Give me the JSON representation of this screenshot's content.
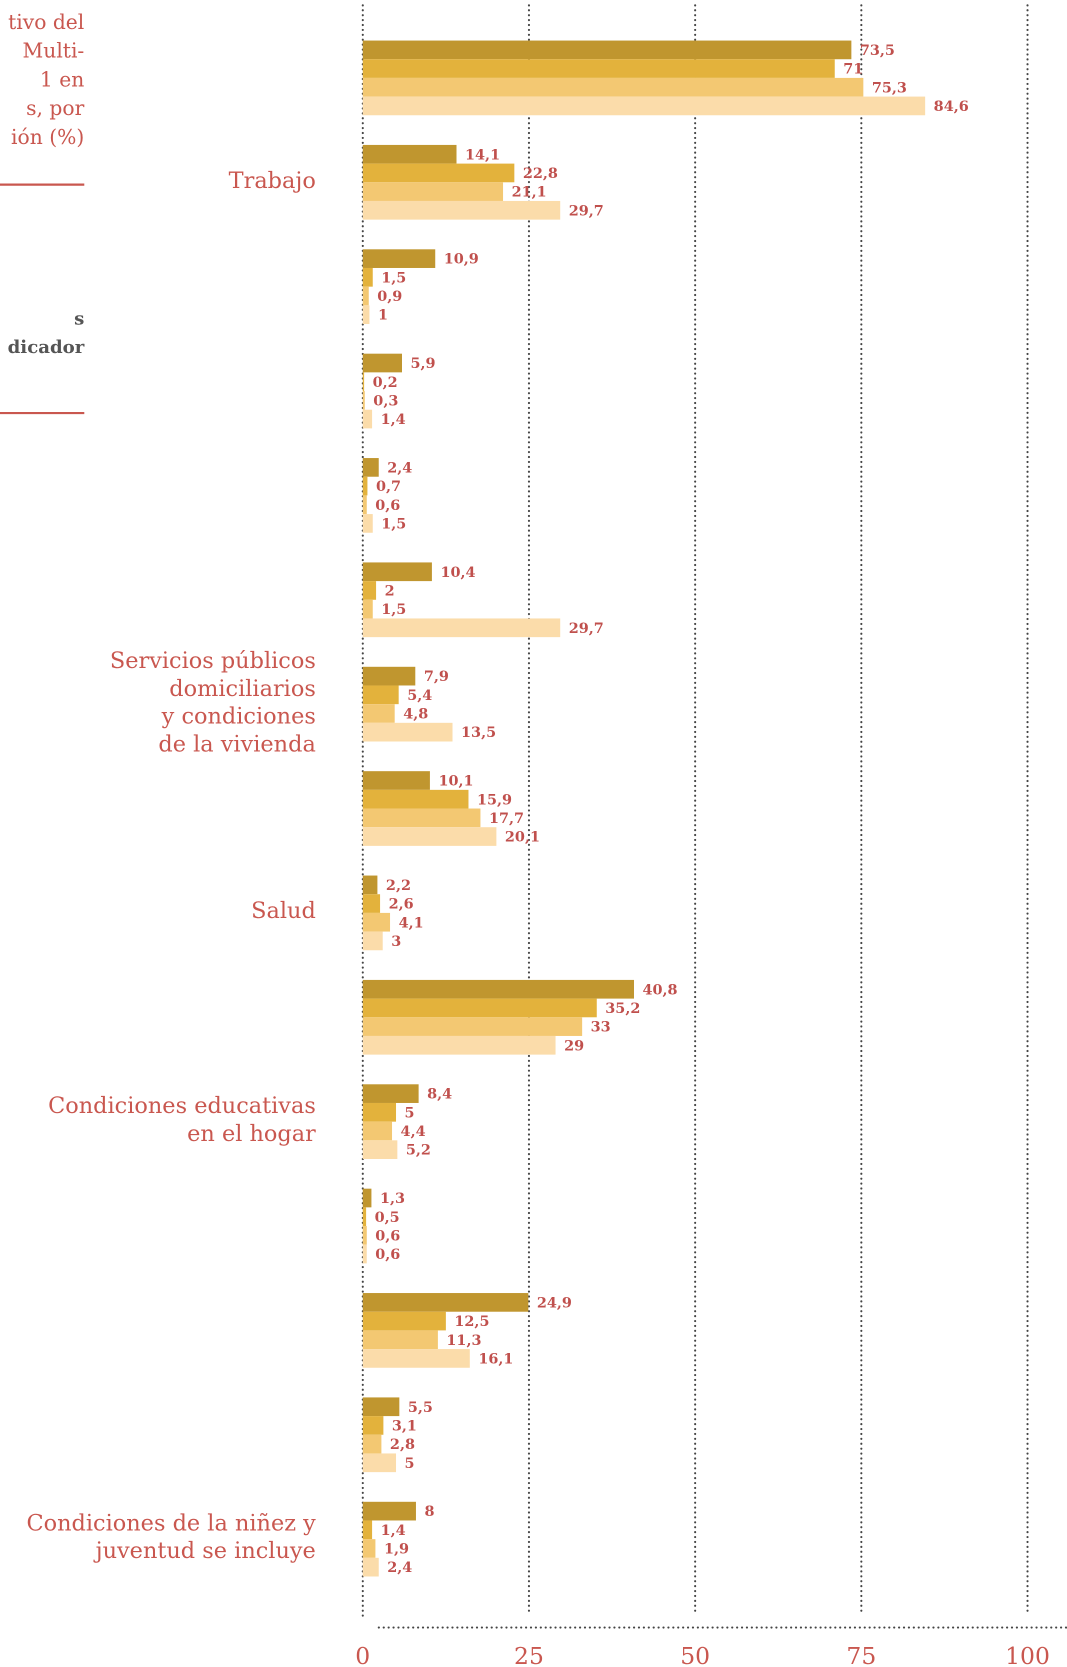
{
  "header": {
    "title_lines": [
      "tivo del",
      "Multi-",
      "1 en",
      "s, por",
      "ión (%)"
    ],
    "subtitle_lines": [
      "s",
      "dicador"
    ]
  },
  "chart_data": {
    "type": "hbar",
    "categories": [
      null,
      "Trabajo",
      null,
      null,
      null,
      null,
      "Servicios públicos\ndomiciliarios\ny condiciones\nde la vivienda",
      null,
      "Salud",
      null,
      "Condiciones educativas\nen el hogar",
      null,
      null,
      null,
      "Condiciones de la niñez y\njuventud se incluye"
    ],
    "series": [
      {
        "color": "#c0962f",
        "values": [
          73.5,
          14.1,
          10.9,
          5.9,
          2.4,
          10.4,
          7.9,
          10.1,
          2.2,
          40.8,
          8.4,
          1.3,
          24.9,
          5.5,
          8
        ],
        "value_labels": [
          "73,5",
          "14,1",
          "10,9",
          "5,9",
          "2,4",
          "10,4",
          "7,9",
          "10,1",
          "2,2",
          "40,8",
          "8,4",
          "1,3",
          "24,9",
          "5,5",
          "8"
        ]
      },
      {
        "color": "#e3b23c",
        "values": [
          71,
          22.8,
          1.5,
          0.2,
          0.7,
          2,
          5.4,
          15.9,
          2.6,
          35.2,
          5,
          0.5,
          12.5,
          3.1,
          1.4
        ],
        "value_labels": [
          "71",
          "22,8",
          "1,5",
          "0,2",
          "0,7",
          "2",
          "5,4",
          "15,9",
          "2,6",
          "35,2",
          "5",
          "0,5",
          "12,5",
          "3,1",
          "1,4"
        ]
      },
      {
        "color": "#f3c872",
        "values": [
          75.3,
          21.1,
          0.9,
          0.3,
          0.6,
          1.5,
          4.8,
          17.7,
          4.1,
          33,
          4.4,
          0.6,
          11.3,
          2.8,
          1.9
        ],
        "value_labels": [
          "75,3",
          "21,1",
          "0,9",
          "0,3",
          "0,6",
          "1,5",
          "4,8",
          "17,7",
          "4,1",
          "33",
          "4,4",
          "0,6",
          "11,3",
          "2,8",
          "1,9"
        ]
      },
      {
        "color": "#fbdcaa",
        "values": [
          84.6,
          29.7,
          1,
          1.4,
          1.5,
          29.7,
          13.5,
          20.1,
          3,
          29,
          5.2,
          0.6,
          16.1,
          5,
          2.4
        ],
        "value_labels": [
          "84,6",
          "29,7",
          "1",
          "1,4",
          "1,5",
          "29,7",
          "13,5",
          "20,1",
          "3",
          "29",
          "5,2",
          "0,6",
          "16,1",
          "5",
          "2,4"
        ]
      }
    ],
    "xlim": [
      0,
      100
    ],
    "xticks": [
      0,
      25,
      50,
      75,
      100
    ],
    "grid": true
  }
}
